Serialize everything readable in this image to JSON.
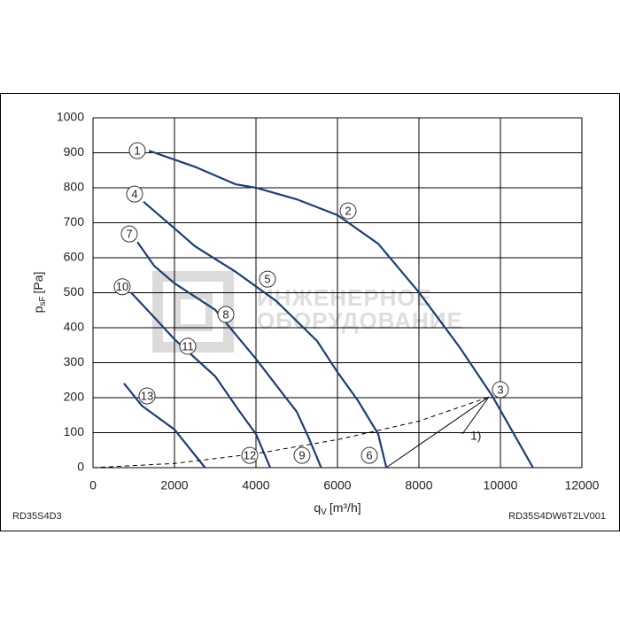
{
  "chart_data": {
    "type": "line",
    "xlabel": {
      "main": "q",
      "sub": "V",
      "unit": "[m³/h]"
    },
    "ylabel": {
      "main": "p",
      "sub": "sF",
      "unit": "[Pa]"
    },
    "xlim": [
      0,
      12000
    ],
    "ylim": [
      0,
      1000
    ],
    "xticks": [
      0,
      2000,
      4000,
      6000,
      8000,
      10000,
      12000
    ],
    "yticks": [
      0,
      100,
      200,
      300,
      400,
      500,
      600,
      700,
      800,
      900,
      1000
    ],
    "grid": true,
    "series": [
      {
        "color": "#1d3f73",
        "x": [
          1370,
          2500,
          3500,
          4000,
          5000,
          6000,
          7000,
          8000,
          9000,
          9800,
          10800
        ],
        "values": [
          906,
          860,
          810,
          800,
          767,
          722,
          640,
          501,
          344,
          205,
          0
        ]
      },
      {
        "color": "#1d3f73",
        "x": [
          1240,
          2000,
          2500,
          3500,
          4500,
          5500,
          6000,
          6500,
          7000,
          7200
        ],
        "values": [
          760,
          684,
          633,
          560,
          476,
          362,
          273,
          192,
          96,
          0
        ]
      },
      {
        "color": "#1d3f73",
        "x": [
          1090,
          1500,
          2000,
          3000,
          4000,
          4700,
          5000,
          5300,
          5600
        ],
        "values": [
          645,
          577,
          527,
          451,
          311,
          205,
          160,
          84,
          0
        ]
      },
      {
        "color": "#1d3f73",
        "x": [
          930,
          1500,
          2000,
          3000,
          3600,
          4000,
          4350
        ],
        "values": [
          501,
          430,
          367,
          261,
          160,
          96,
          0
        ]
      },
      {
        "color": "#1d3f73",
        "x": [
          760,
          1200,
          2000,
          2750
        ],
        "values": [
          241,
          177,
          109,
          0
        ]
      },
      {
        "color": "#000000",
        "dashed": true,
        "x": [
          0,
          2000,
          4000,
          6000,
          8000,
          9800
        ],
        "values": [
          0,
          12,
          40,
          80,
          133,
          205
        ]
      }
    ],
    "annotations": [
      {
        "text": "1",
        "x": 1087,
        "y": 906
      },
      {
        "text": "2",
        "x": 6261,
        "y": 734
      },
      {
        "text": "3",
        "x": 9999,
        "y": 223
      },
      {
        "text": "4",
        "x": 1022,
        "y": 782
      },
      {
        "text": "5",
        "x": 4283,
        "y": 539
      },
      {
        "text": "6",
        "x": 6783,
        "y": 35
      },
      {
        "text": "7",
        "x": 891,
        "y": 668
      },
      {
        "text": "8",
        "x": 3261,
        "y": 438
      },
      {
        "text": "9",
        "x": 5130,
        "y": 35
      },
      {
        "text": "10",
        "x": 717,
        "y": 517
      },
      {
        "text": "11",
        "x": 2326,
        "y": 347
      },
      {
        "text": "12",
        "x": 3848,
        "y": 35
      },
      {
        "text": "13",
        "x": 1326,
        "y": 205
      }
    ],
    "note": "1)",
    "footer_left": "RD35S4D3",
    "footer_right": "RD35S4DW6T2LV001",
    "watermark": [
      "ИНЖЕНЕРНОЕ",
      "ОБОРУДОВАНИЕ"
    ]
  }
}
